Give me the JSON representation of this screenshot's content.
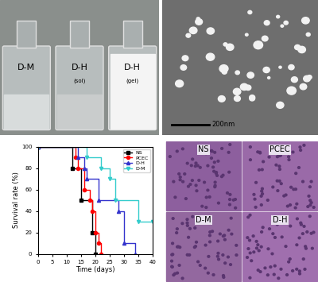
{
  "photos": {
    "vials": [
      {
        "label": "D-M"
      },
      {
        "label": "D-H",
        "state": "(sol)"
      },
      {
        "label": "D-H",
        "state": "(gel)"
      }
    ],
    "tem": {
      "scale_bar": "200nm"
    },
    "histology": {
      "panels": [
        "NS",
        "PCEC",
        "D-M",
        "D-H"
      ]
    }
  },
  "chart_data": {
    "type": "step",
    "xlabel": "Time (days)",
    "ylabel": "Survival rate (%)",
    "xlim": [
      0,
      40
    ],
    "xticks": [
      0,
      5,
      10,
      15,
      20,
      25,
      30,
      35,
      40
    ],
    "ylim": [
      0,
      100
    ],
    "yticks": [
      0,
      20,
      40,
      60,
      80,
      100
    ],
    "legend": "upper right",
    "series": [
      {
        "name": "NS",
        "color": "#000000",
        "marker": "s",
        "line_style": "solid",
        "x": [
          0,
          12,
          15,
          19,
          20
        ],
        "values": [
          100,
          80,
          50,
          20,
          0
        ]
      },
      {
        "name": "PCEC",
        "color": "#ff0000",
        "marker": "o",
        "line_style": "solid",
        "x": [
          0,
          13,
          14,
          16,
          18,
          19,
          20,
          21,
          22
        ],
        "values": [
          100,
          90,
          80,
          60,
          50,
          40,
          20,
          10,
          0
        ]
      },
      {
        "name": "D-H",
        "color": "#3333cc",
        "marker": "^",
        "line_style": "solid",
        "x": [
          0,
          14,
          16,
          17,
          21,
          28,
          30,
          34
        ],
        "values": [
          100,
          90,
          80,
          70,
          50,
          40,
          10,
          0
        ]
      },
      {
        "name": "D-M",
        "color": "#33cccc",
        "marker": "v",
        "line_style": "solid",
        "x": [
          0,
          17,
          22,
          25,
          27,
          35,
          40
        ],
        "values": [
          100,
          90,
          80,
          70,
          50,
          30,
          30
        ]
      }
    ]
  }
}
